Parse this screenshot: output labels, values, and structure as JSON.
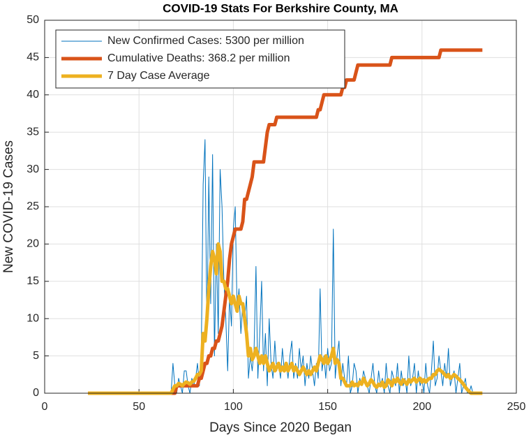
{
  "chart_data": {
    "type": "line",
    "title": "COVID-19 Stats For Berkshire County, MA",
    "x_label": "Days Since 2020 Began",
    "y_label": "New COVID-19 Cases",
    "xlim": [
      0,
      250
    ],
    "xticks": [
      0,
      50,
      100,
      150,
      200,
      250
    ],
    "ylim": [
      0,
      50
    ],
    "yticks": [
      0,
      5,
      10,
      15,
      20,
      25,
      30,
      35,
      40,
      45,
      50
    ],
    "grid": true,
    "legend": "northwest",
    "x": [
      23,
      24,
      25,
      26,
      27,
      28,
      29,
      30,
      31,
      32,
      33,
      34,
      35,
      36,
      37,
      38,
      39,
      40,
      41,
      42,
      43,
      44,
      45,
      46,
      47,
      48,
      49,
      50,
      51,
      52,
      53,
      54,
      55,
      56,
      57,
      58,
      59,
      60,
      61,
      62,
      63,
      64,
      65,
      66,
      67,
      68,
      69,
      70,
      71,
      72,
      73,
      74,
      75,
      76,
      77,
      78,
      79,
      80,
      81,
      82,
      83,
      84,
      85,
      86,
      87,
      88,
      89,
      90,
      91,
      92,
      93,
      94,
      95,
      96,
      97,
      98,
      99,
      100,
      101,
      102,
      103,
      104,
      105,
      106,
      107,
      108,
      109,
      110,
      111,
      112,
      113,
      114,
      115,
      116,
      117,
      118,
      119,
      120,
      121,
      122,
      123,
      124,
      125,
      126,
      127,
      128,
      129,
      130,
      131,
      132,
      133,
      134,
      135,
      136,
      137,
      138,
      139,
      140,
      141,
      142,
      143,
      144,
      145,
      146,
      147,
      148,
      149,
      150,
      151,
      152,
      153,
      154,
      155,
      156,
      157,
      158,
      159,
      160,
      161,
      162,
      163,
      164,
      165,
      166,
      167,
      168,
      169,
      170,
      171,
      172,
      173,
      174,
      175,
      176,
      177,
      178,
      179,
      180,
      181,
      182,
      183,
      184,
      185,
      186,
      187,
      188,
      189,
      190,
      191,
      192,
      193,
      194,
      195,
      196,
      197,
      198,
      199,
      200,
      201,
      202,
      203,
      204,
      205,
      206,
      207,
      208,
      209,
      210,
      211,
      212,
      213,
      214,
      215,
      216,
      217,
      218,
      219,
      220,
      221,
      222,
      223,
      224,
      225,
      226,
      227,
      228,
      229,
      230,
      231,
      232
    ],
    "series": [
      {
        "name": "New Confirmed Cases: 5300 per million",
        "color": "#0072BD",
        "width": 1,
        "values": [
          0,
          0,
          0,
          0,
          0,
          0,
          0,
          0,
          0,
          0,
          0,
          0,
          0,
          0,
          0,
          0,
          0,
          0,
          0,
          0,
          0,
          0,
          0,
          0,
          0,
          0,
          0,
          0,
          0,
          0,
          0,
          0,
          0,
          0,
          0,
          0,
          0,
          0,
          0,
          0,
          0,
          0,
          0,
          0,
          0,
          4,
          1,
          0,
          2,
          1,
          0,
          3,
          3,
          1,
          0,
          2,
          1,
          2,
          4,
          1,
          5,
          28,
          34,
          8,
          29,
          12,
          32,
          5,
          20,
          8,
          30,
          25,
          15,
          10,
          3,
          13,
          9,
          22,
          25,
          11,
          14,
          8,
          12,
          10,
          13,
          2,
          5,
          3,
          6,
          17,
          2,
          8,
          15,
          3,
          8,
          1,
          10,
          4,
          2,
          7,
          3,
          4,
          2,
          6,
          3,
          4,
          2,
          5,
          7,
          2,
          4,
          2,
          6,
          3,
          5,
          1,
          4,
          2,
          5,
          3,
          1,
          4,
          2,
          14,
          3,
          5,
          2,
          6,
          3,
          4,
          22,
          2,
          5,
          7,
          1,
          4,
          2,
          1,
          5,
          0,
          1,
          4,
          3,
          0,
          2,
          1,
          3,
          2,
          1,
          0,
          2,
          4,
          1,
          0,
          3,
          1,
          2,
          0,
          4,
          1,
          0,
          3,
          2,
          1,
          4,
          0,
          3,
          1,
          2,
          0,
          5,
          1,
          2,
          4,
          0,
          3,
          1,
          2,
          0,
          4,
          1,
          0,
          3,
          7,
          1,
          2,
          5,
          3,
          1,
          4,
          2,
          6,
          1,
          2,
          3,
          0,
          2,
          4,
          0,
          1,
          2,
          0,
          0,
          1,
          0,
          0,
          0,
          0,
          0,
          0
        ]
      },
      {
        "name": "Cumulative Deaths: 368.2 per million",
        "color": "#D95319",
        "width": 5,
        "values": [
          0,
          0,
          0,
          0,
          0,
          0,
          0,
          0,
          0,
          0,
          0,
          0,
          0,
          0,
          0,
          0,
          0,
          0,
          0,
          0,
          0,
          0,
          0,
          0,
          0,
          0,
          0,
          0,
          0,
          0,
          0,
          0,
          0,
          0,
          0,
          0,
          0,
          0,
          0,
          0,
          0,
          0,
          0,
          0,
          0,
          0,
          0,
          1,
          1,
          1,
          1,
          1,
          1,
          1,
          1,
          1,
          1,
          1,
          1,
          2,
          2,
          3,
          4,
          4,
          5,
          5,
          6,
          6,
          7,
          7,
          8,
          9,
          11,
          13,
          15,
          18,
          20,
          21,
          22,
          22,
          22,
          22,
          23,
          26,
          26,
          27,
          28,
          29,
          31,
          31,
          31,
          31,
          31,
          31,
          33,
          35,
          36,
          36,
          36,
          36,
          37,
          37,
          37,
          37,
          37,
          37,
          37,
          37,
          37,
          37,
          37,
          37,
          37,
          37,
          37,
          37,
          37,
          37,
          37,
          37,
          37,
          37,
          38,
          38,
          39,
          40,
          40,
          40,
          40,
          40,
          40,
          40,
          40,
          40,
          40,
          41,
          41,
          42,
          42,
          42,
          42,
          42,
          43,
          44,
          44,
          44,
          44,
          44,
          44,
          44,
          44,
          44,
          44,
          44,
          44,
          44,
          44,
          44,
          44,
          44,
          44,
          45,
          45,
          45,
          45,
          45,
          45,
          45,
          45,
          45,
          45,
          45,
          45,
          45,
          45,
          45,
          45,
          45,
          45,
          45,
          45,
          45,
          45,
          45,
          45,
          45,
          45,
          46,
          46,
          46,
          46,
          46,
          46,
          46,
          46,
          46,
          46,
          46,
          46,
          46,
          46,
          46,
          46,
          46,
          46,
          46,
          46,
          46,
          46,
          46
        ]
      },
      {
        "name": "7 Day Case Average",
        "color": "#EDB120",
        "width": 5,
        "values": [
          0,
          0,
          0,
          0,
          0,
          0,
          0,
          0,
          0,
          0,
          0,
          0,
          0,
          0,
          0,
          0,
          0,
          0,
          0,
          0,
          0,
          0,
          0,
          0,
          0,
          0,
          0,
          0,
          0,
          0,
          0,
          0,
          0,
          0,
          0,
          0,
          0,
          0,
          0,
          0,
          0,
          0,
          0,
          0,
          0,
          0.5,
          1,
          1,
          1.3,
          1.2,
          1,
          1.3,
          1.5,
          1.4,
          1.2,
          1.5,
          1.6,
          2,
          2.5,
          2.5,
          3,
          8,
          7,
          10,
          14,
          17,
          19,
          18,
          16,
          20,
          19,
          15,
          15,
          14,
          14,
          13,
          12,
          13,
          12,
          11,
          13,
          12,
          12,
          10,
          8,
          5,
          6,
          4.5,
          5,
          6,
          5,
          4,
          5,
          4,
          5,
          4,
          3,
          3.5,
          4,
          3,
          3.5,
          4,
          3,
          3.5,
          3,
          4,
          3,
          3.5,
          4,
          3,
          3.5,
          3,
          2.5,
          3,
          3.5,
          3,
          2.5,
          3,
          2.5,
          3,
          3.5,
          3,
          4,
          5,
          4.5,
          4,
          5,
          4,
          4.5,
          5,
          6,
          4,
          4.5,
          4,
          2,
          2,
          1.5,
          1,
          1,
          1,
          1.5,
          1,
          1.2,
          1,
          1.5,
          1.2,
          2,
          1.5,
          1,
          1.3,
          1.8,
          1.5,
          1,
          0.8,
          1.2,
          1,
          1.5,
          0.8,
          1,
          1.8,
          1.5,
          1,
          1.8,
          1.5,
          2,
          1.5,
          1.2,
          1.8,
          1.5,
          1.2,
          1.8,
          1.5,
          1.8,
          2,
          1.5,
          1.8,
          2,
          1.5,
          1.8,
          1.5,
          1.8,
          2,
          2,
          2.5,
          2.5,
          3,
          3.2,
          3,
          2.8,
          2.5,
          2.2,
          2.5,
          2,
          2.2,
          2.5,
          2.3,
          2,
          1.8,
          1.5,
          1.2,
          0.8,
          0.5,
          0.2,
          0,
          0,
          0,
          0,
          0,
          0,
          0
        ]
      }
    ]
  }
}
